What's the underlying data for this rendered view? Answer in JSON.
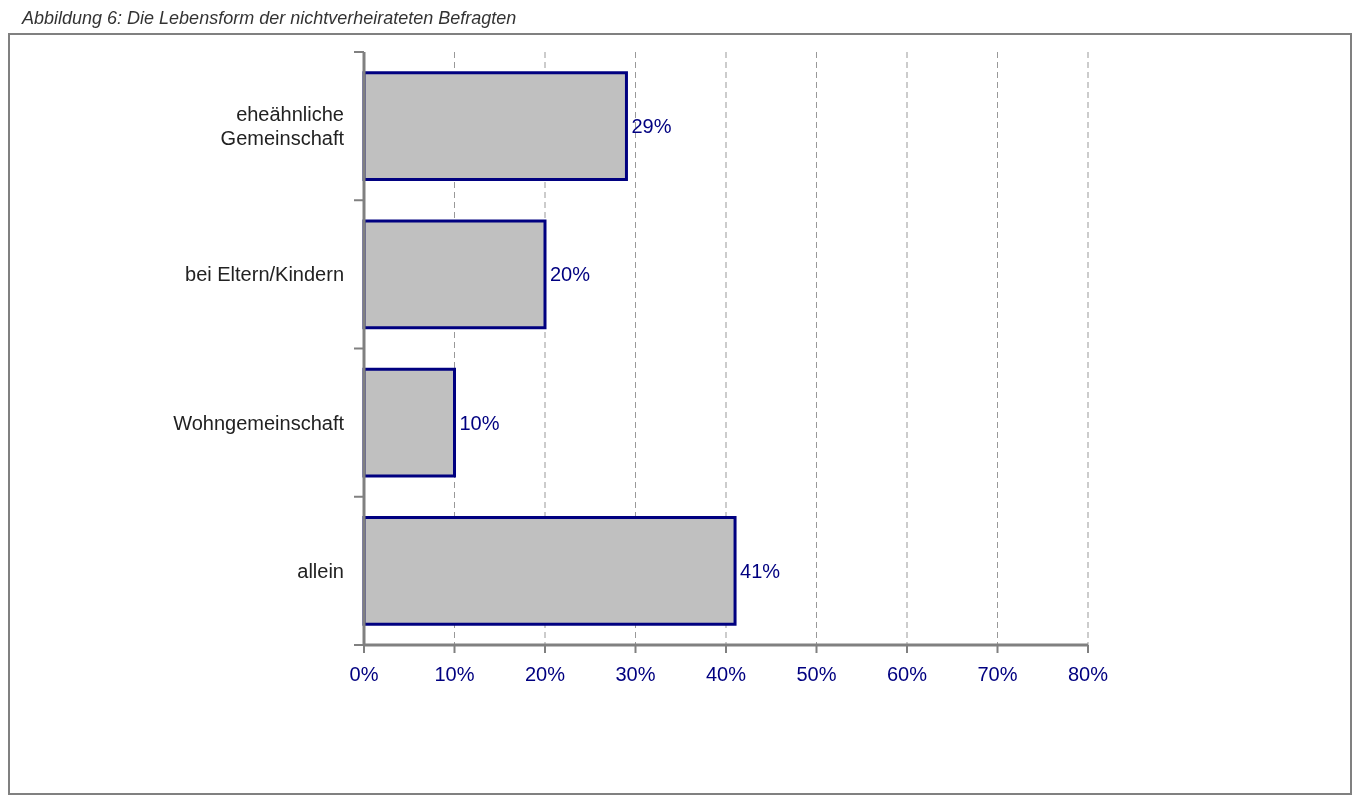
{
  "chart_data": {
    "type": "bar",
    "orientation": "horizontal",
    "title": "Abbildung 6: Die Lebensform der nichtverheirateten Befragten",
    "categories": [
      "eheähnliche Gemeinschaft",
      "bei Eltern/Kindern",
      "Wohngemeinschaft",
      "allein"
    ],
    "values": [
      29,
      20,
      10,
      41
    ],
    "value_labels": [
      "29%",
      "20%",
      "10%",
      "41%"
    ],
    "color": "#c0c0c0",
    "xlim": [
      0,
      80
    ],
    "xticks": [
      {
        "value": 0,
        "label": "0%"
      },
      {
        "value": 10,
        "label": "10%"
      },
      {
        "value": 20,
        "label": "20%"
      },
      {
        "value": 30,
        "label": "30%"
      },
      {
        "value": 40,
        "label": "40%"
      },
      {
        "value": 50,
        "label": "50%"
      },
      {
        "value": 60,
        "label": "60%"
      },
      {
        "value": 70,
        "label": "70%"
      },
      {
        "value": 80,
        "label": "80%"
      }
    ],
    "grid": "x"
  }
}
